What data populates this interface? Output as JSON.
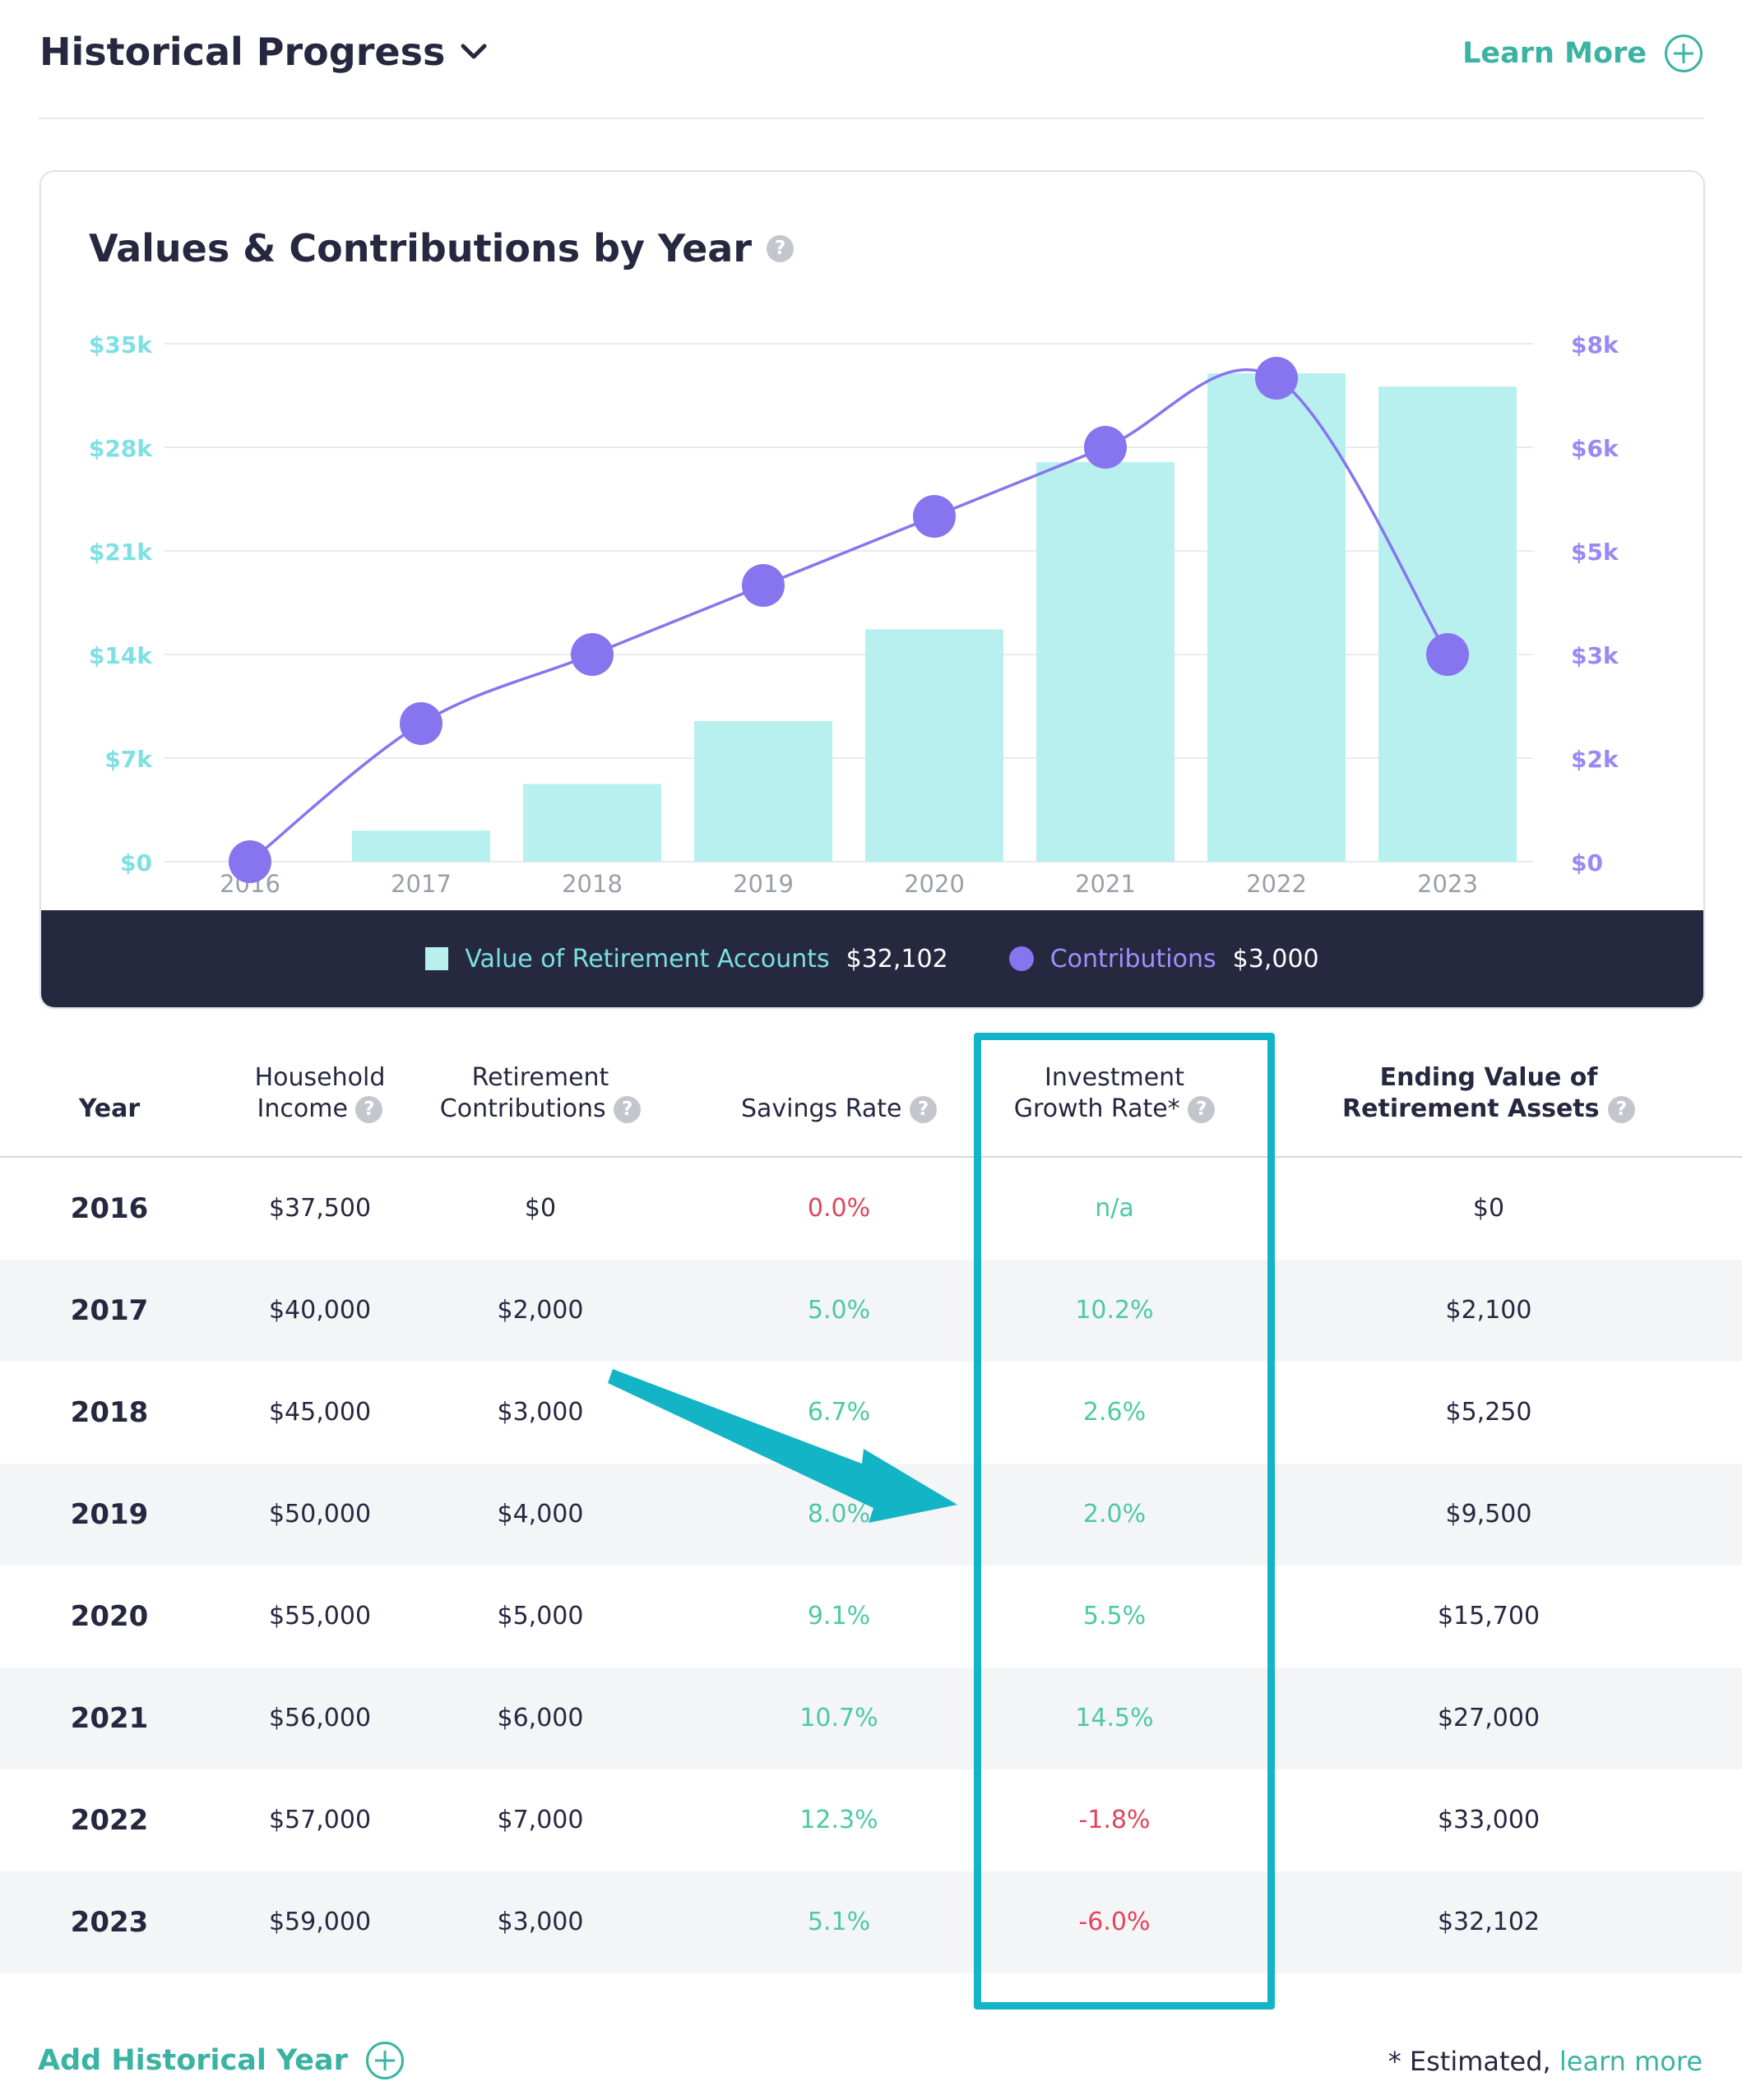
{
  "header": {
    "title": "Historical Progress",
    "learn_more": "Learn More"
  },
  "chart_card": {
    "title": "Values & Contributions by Year",
    "legend": {
      "accounts_label": "Value of Retirement Accounts",
      "accounts_value": "$32,102",
      "contrib_label": "Contributions",
      "contrib_value": "$3,000"
    }
  },
  "chart_data": {
    "type": "bar",
    "categories": [
      "2016",
      "2017",
      "2018",
      "2019",
      "2020",
      "2021",
      "2022",
      "2023"
    ],
    "series": [
      {
        "name": "Value of Retirement Accounts",
        "type": "bar",
        "axis": "left",
        "values": [
          0,
          2100,
          5250,
          9500,
          15700,
          27000,
          33000,
          32102
        ]
      },
      {
        "name": "Contributions",
        "type": "line",
        "axis": "right",
        "values": [
          0,
          2000,
          3000,
          4000,
          5000,
          6000,
          7000,
          3000
        ]
      }
    ],
    "y_left": {
      "ticks": [
        "$0",
        "$7k",
        "$14k",
        "$21k",
        "$28k",
        "$35k"
      ],
      "range": [
        0,
        35000
      ]
    },
    "y_right": {
      "ticks": [
        "$0",
        "$2k",
        "$3k",
        "$5k",
        "$6k",
        "$8k"
      ],
      "range": [
        0,
        7500
      ]
    },
    "colors": {
      "bar": "#b8f0f0",
      "line": "#8675ee",
      "left_axis": "#7fe0e3",
      "right_axis": "#9a88f5",
      "grid": "#e8eaee"
    },
    "grid": true
  },
  "table": {
    "headers": {
      "year": "Year",
      "income_1": "Household",
      "income_2": "Income",
      "contrib_1": "Retirement",
      "contrib_2": "Contributions",
      "savings": "Savings Rate",
      "growth_1": "Investment",
      "growth_2": "Growth Rate*",
      "ending_1": "Ending Value of",
      "ending_2": "Retirement Assets"
    },
    "rows": [
      {
        "year": "2016",
        "income": "$37,500",
        "contrib": "$0",
        "savings": "0.0%",
        "growth": "n/a",
        "ending": "$0",
        "savings_color": "red",
        "growth_color": "green"
      },
      {
        "year": "2017",
        "income": "$40,000",
        "contrib": "$2,000",
        "savings": "5.0%",
        "growth": "10.2%",
        "ending": "$2,100",
        "savings_color": "green",
        "growth_color": "green"
      },
      {
        "year": "2018",
        "income": "$45,000",
        "contrib": "$3,000",
        "savings": "6.7%",
        "growth": "2.6%",
        "ending": "$5,250",
        "savings_color": "green",
        "growth_color": "green"
      },
      {
        "year": "2019",
        "income": "$50,000",
        "contrib": "$4,000",
        "savings": "8.0%",
        "growth": "2.0%",
        "ending": "$9,500",
        "savings_color": "green",
        "growth_color": "green"
      },
      {
        "year": "2020",
        "income": "$55,000",
        "contrib": "$5,000",
        "savings": "9.1%",
        "growth": "5.5%",
        "ending": "$15,700",
        "savings_color": "green",
        "growth_color": "green"
      },
      {
        "year": "2021",
        "income": "$56,000",
        "contrib": "$6,000",
        "savings": "10.7%",
        "growth": "14.5%",
        "ending": "$27,000",
        "savings_color": "green",
        "growth_color": "green"
      },
      {
        "year": "2022",
        "income": "$57,000",
        "contrib": "$7,000",
        "savings": "12.3%",
        "growth": "-1.8%",
        "ending": "$33,000",
        "savings_color": "green",
        "growth_color": "red"
      },
      {
        "year": "2023",
        "income": "$59,000",
        "contrib": "$3,000",
        "savings": "5.1%",
        "growth": "-6.0%",
        "ending": "$32,102",
        "savings_color": "green",
        "growth_color": "red"
      }
    ]
  },
  "footer": {
    "add_year": "Add Historical Year",
    "estimated": "* Estimated, ",
    "learn_more": "learn more"
  },
  "icons": {
    "help": "?",
    "title_chevron": "chevron-down-icon",
    "learn_more_icon": "plus-circle-icon",
    "add_year_icon": "plus-circle-icon"
  }
}
